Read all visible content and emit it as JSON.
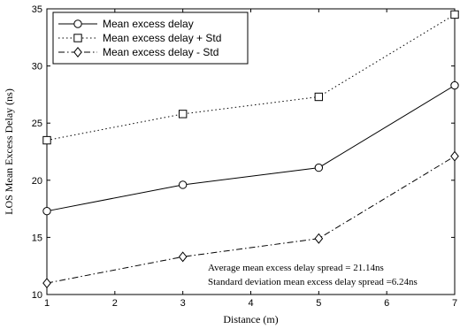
{
  "chart_data": {
    "type": "line",
    "xlabel": "Distance (m)",
    "ylabel": "LOS Mean Excess Delay (ns)",
    "xlim": [
      1,
      7
    ],
    "ylim": [
      10,
      35
    ],
    "xticks": [
      1,
      2,
      3,
      4,
      5,
      6,
      7
    ],
    "yticks": [
      10,
      15,
      20,
      25,
      30,
      35
    ],
    "grid": false,
    "legend_position": "top-left",
    "series": [
      {
        "name": "Mean excess delay",
        "marker": "circle",
        "dash": "solid",
        "x": [
          1,
          3,
          5,
          7
        ],
        "y": [
          17.3,
          19.6,
          21.1,
          28.3
        ]
      },
      {
        "name": "Mean excess delay + Std",
        "marker": "square",
        "dash": "dotted",
        "x": [
          1,
          3,
          5,
          7
        ],
        "y": [
          23.5,
          25.8,
          27.3,
          34.5
        ]
      },
      {
        "name": "Mean excess delay - Std",
        "marker": "diamond",
        "dash": "dashdot",
        "x": [
          1,
          3,
          5,
          7
        ],
        "y": [
          11.0,
          13.3,
          14.9,
          22.1
        ]
      }
    ],
    "annotations": [
      "Average mean excess delay spread = 21.14ns",
      "Standard deviation  mean excess delay spread =6.24ns"
    ]
  }
}
